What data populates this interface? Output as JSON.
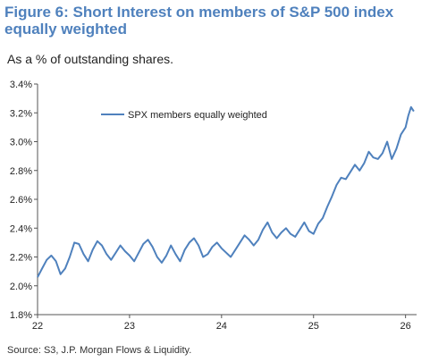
{
  "title": "Figure 6: Short Interest on members of S&P 500 index equally weighted",
  "subtitle": "As a % of outstanding shares.",
  "source": "Source: S3, J.P. Morgan Flows & Liquidity.",
  "chart_data": {
    "type": "line",
    "title": "Figure 6: Short Interest on members of S&P 500 index equally weighted",
    "subtitle": "As a % of outstanding shares.",
    "xlabel": "",
    "ylabel": "",
    "x_ticks": [
      "22",
      "23",
      "24",
      "25",
      "26"
    ],
    "y_ticks": [
      "1.8%",
      "2.0%",
      "2.2%",
      "2.4%",
      "2.6%",
      "2.8%",
      "3.0%",
      "3.2%",
      "3.4%"
    ],
    "xlim": [
      22.0,
      26.12
    ],
    "ylim": [
      1.8,
      3.4
    ],
    "grid": false,
    "legend_position": "top-left",
    "series": [
      {
        "name": "SPX members equally weighted",
        "color": "#4f81bd",
        "x": [
          22.0,
          22.05,
          22.1,
          22.15,
          22.2,
          22.25,
          22.3,
          22.35,
          22.4,
          22.45,
          22.5,
          22.55,
          22.6,
          22.65,
          22.7,
          22.75,
          22.8,
          22.85,
          22.9,
          22.95,
          23.0,
          23.05,
          23.1,
          23.15,
          23.2,
          23.25,
          23.3,
          23.35,
          23.4,
          23.45,
          23.5,
          23.55,
          23.6,
          23.65,
          23.7,
          23.75,
          23.8,
          23.85,
          23.9,
          23.95,
          24.0,
          24.05,
          24.1,
          24.15,
          24.2,
          24.25,
          24.3,
          24.35,
          24.4,
          24.45,
          24.5,
          24.55,
          24.6,
          24.65,
          24.7,
          24.75,
          24.8,
          24.85,
          24.9,
          24.95,
          25.0,
          25.05,
          25.1,
          25.15,
          25.2,
          25.25,
          25.3,
          25.35,
          25.4,
          25.45,
          25.5,
          25.55,
          25.6,
          25.65,
          25.7,
          25.75,
          25.8,
          25.85,
          25.9,
          25.95,
          26.0,
          26.03,
          26.06,
          26.09
        ],
        "y": [
          2.06,
          2.12,
          2.18,
          2.21,
          2.17,
          2.08,
          2.12,
          2.2,
          2.3,
          2.29,
          2.22,
          2.17,
          2.25,
          2.31,
          2.28,
          2.22,
          2.18,
          2.23,
          2.28,
          2.24,
          2.21,
          2.17,
          2.23,
          2.29,
          2.32,
          2.27,
          2.2,
          2.16,
          2.21,
          2.28,
          2.22,
          2.17,
          2.25,
          2.3,
          2.33,
          2.28,
          2.2,
          2.22,
          2.27,
          2.3,
          2.26,
          2.23,
          2.2,
          2.25,
          2.3,
          2.35,
          2.32,
          2.28,
          2.32,
          2.39,
          2.44,
          2.37,
          2.33,
          2.37,
          2.4,
          2.36,
          2.34,
          2.39,
          2.44,
          2.38,
          2.36,
          2.43,
          2.47,
          2.55,
          2.62,
          2.7,
          2.75,
          2.74,
          2.79,
          2.84,
          2.8,
          2.85,
          2.93,
          2.89,
          2.88,
          2.92,
          3.0,
          2.88,
          2.95,
          3.05,
          3.1,
          3.18,
          3.24,
          3.21
        ]
      }
    ]
  }
}
